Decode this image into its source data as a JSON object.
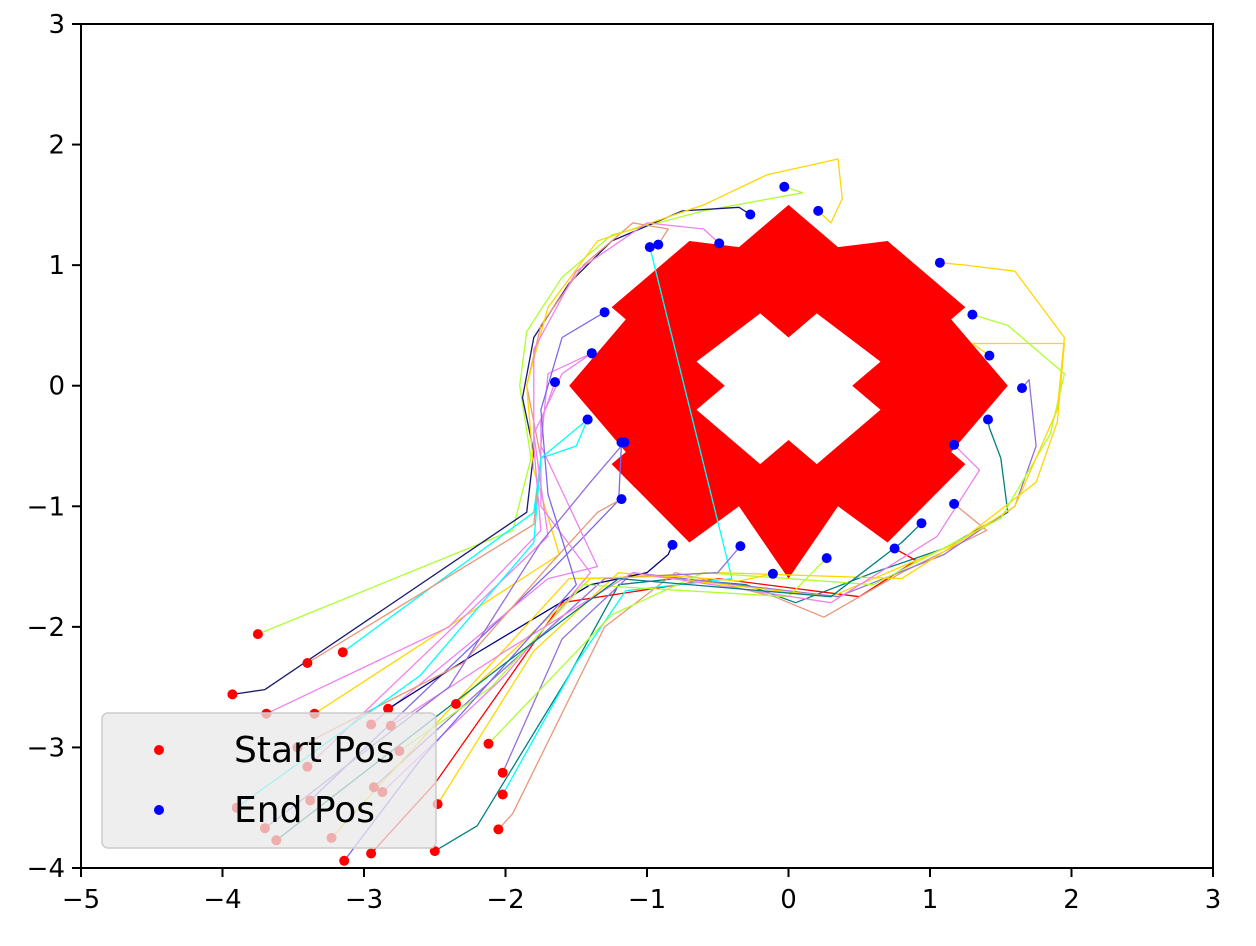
{
  "chart_data": {
    "type": "scatter",
    "xlim": [
      -5,
      3
    ],
    "ylim": [
      -4,
      3
    ],
    "xticks": [
      -5,
      -4,
      -3,
      -2,
      -1,
      0,
      1,
      2,
      3
    ],
    "yticks": [
      -4,
      -3,
      -2,
      -1,
      0,
      1,
      2,
      3
    ],
    "xtick_labels": [
      "−5",
      "−4",
      "−3",
      "−2",
      "−1",
      "0",
      "1",
      "2",
      "3"
    ],
    "ytick_labels": [
      "−4",
      "−3",
      "−2",
      "−1",
      "0",
      "1",
      "2",
      "3"
    ],
    "grid": false,
    "legend": {
      "placement": "lower-left",
      "entries": [
        {
          "label": "Start Pos",
          "color": "#ff0000"
        },
        {
          "label": "End Pos",
          "color": "#0000ff"
        }
      ]
    },
    "obstacle": {
      "color": "#ff0000",
      "outer": [
        [
          0,
          1.5
        ],
        [
          0.35,
          1.15
        ],
        [
          0.7,
          1.2
        ],
        [
          1.25,
          0.65
        ],
        [
          1.15,
          0.55
        ],
        [
          1.55,
          0.0
        ],
        [
          1.15,
          -0.55
        ],
        [
          1.25,
          -0.65
        ],
        [
          0.7,
          -1.3
        ],
        [
          0.35,
          -1.0
        ],
        [
          0,
          -1.6
        ],
        [
          -0.35,
          -1.0
        ],
        [
          -0.7,
          -1.3
        ],
        [
          -1.25,
          -0.65
        ],
        [
          -1.15,
          -0.55
        ],
        [
          -1.55,
          0.0
        ],
        [
          -1.15,
          0.55
        ],
        [
          -1.25,
          0.65
        ],
        [
          -0.7,
          1.2
        ],
        [
          -0.35,
          1.15
        ]
      ],
      "hole": [
        [
          0,
          0.4
        ],
        [
          0.2,
          0.6
        ],
        [
          0.65,
          0.2
        ],
        [
          0.45,
          0.0
        ],
        [
          0.65,
          -0.2
        ],
        [
          0.2,
          -0.65
        ],
        [
          0,
          -0.45
        ],
        [
          -0.2,
          -0.65
        ],
        [
          -0.65,
          -0.2
        ],
        [
          -0.45,
          0.0
        ],
        [
          -0.65,
          0.2
        ],
        [
          -0.2,
          0.6
        ]
      ]
    },
    "series": [
      {
        "color": "#adff2f",
        "start": [
          -3.75,
          -2.06
        ],
        "end": [
          -0.03,
          1.65
        ],
        "path": [
          [
            -1.95,
            -1.2
          ],
          [
            -1.82,
            -0.6
          ],
          [
            -1.9,
            0.0
          ],
          [
            -1.85,
            0.45
          ],
          [
            -1.6,
            0.9
          ],
          [
            -1.25,
            1.25
          ],
          [
            -0.6,
            1.45
          ],
          [
            0.1,
            1.6
          ]
        ]
      },
      {
        "color": "#00ffff",
        "start": [
          -3.15,
          -2.21
        ],
        "end": [
          -1.42,
          -0.28
        ],
        "path": [
          [
            -1.8,
            -1.05
          ],
          [
            -1.75,
            -0.6
          ],
          [
            -1.5,
            -0.5
          ]
        ]
      },
      {
        "color": "#191970",
        "start": [
          -3.93,
          -2.56
        ],
        "end": [
          -0.27,
          1.42
        ],
        "path": [
          [
            -3.7,
            -2.52
          ],
          [
            -1.85,
            -1.05
          ],
          [
            -1.8,
            -0.55
          ],
          [
            -1.88,
            -0.1
          ],
          [
            -1.8,
            0.4
          ],
          [
            -1.55,
            0.85
          ],
          [
            -1.25,
            1.2
          ],
          [
            -0.75,
            1.45
          ],
          [
            -0.35,
            1.48
          ]
        ]
      },
      {
        "color": "#e9967a",
        "start": [
          -3.4,
          -2.3
        ],
        "end": [
          -0.92,
          1.17
        ],
        "path": [
          [
            -1.8,
            -1.15
          ],
          [
            -1.75,
            -0.6
          ],
          [
            -1.85,
            0.0
          ],
          [
            -1.75,
            0.5
          ],
          [
            -1.45,
            1.0
          ],
          [
            -1.1,
            1.35
          ],
          [
            -0.85,
            1.3
          ]
        ]
      },
      {
        "color": "#ffd700",
        "start": [
          -3.35,
          -2.72
        ],
        "end": [
          0.21,
          1.45
        ],
        "path": [
          [
            -1.62,
            -1.4
          ],
          [
            -1.8,
            -0.7
          ],
          [
            -1.85,
            0.0
          ],
          [
            -1.7,
            0.65
          ],
          [
            -1.35,
            1.2
          ],
          [
            -0.6,
            1.5
          ],
          [
            -0.15,
            1.75
          ],
          [
            0.35,
            1.88
          ],
          [
            0.38,
            1.55
          ],
          [
            0.3,
            1.35
          ]
        ]
      },
      {
        "color": "#ee82ee",
        "start": [
          -3.4,
          -3.16
        ],
        "end": [
          -1.39,
          0.27
        ],
        "path": [
          [
            -1.7,
            -1.25
          ],
          [
            -1.8,
            -0.4
          ],
          [
            -1.6,
            0.1
          ]
        ]
      },
      {
        "color": "#7b68ee",
        "start": [
          -3.38,
          -3.44
        ],
        "end": [
          -1.18,
          -0.47
        ],
        "path": [
          [
            -1.65,
            -1.5
          ],
          [
            -1.2,
            -0.95
          ]
        ]
      },
      {
        "color": "#008080",
        "start": [
          -2.5,
          -3.86
        ],
        "end": [
          1.41,
          -0.28
        ],
        "path": [
          [
            -2.2,
            -3.65
          ],
          [
            -1.55,
            -2.4
          ],
          [
            -1.2,
            -1.65
          ],
          [
            -0.8,
            -1.6
          ],
          [
            -0.3,
            -1.65
          ],
          [
            0.05,
            -1.8
          ],
          [
            0.6,
            -1.55
          ],
          [
            1.1,
            -1.35
          ],
          [
            1.55,
            -1.05
          ],
          [
            1.5,
            -0.6
          ],
          [
            1.42,
            -0.35
          ]
        ]
      },
      {
        "color": "#ff0000",
        "start": [
          -2.95,
          -3.88
        ],
        "end": [
          0.75,
          -1.35
        ],
        "path": [
          [
            -2.5,
            -3.3
          ],
          [
            -1.6,
            -1.8
          ],
          [
            -0.5,
            -1.6
          ],
          [
            0.5,
            -1.75
          ],
          [
            0.9,
            -1.45
          ]
        ]
      },
      {
        "color": "#e9967a",
        "start": [
          -2.05,
          -3.68
        ],
        "end": [
          1.17,
          -0.98
        ],
        "path": [
          [
            -1.95,
            -3.55
          ],
          [
            -1.3,
            -2.0
          ],
          [
            -0.8,
            -1.55
          ],
          [
            -0.1,
            -1.75
          ],
          [
            0.25,
            -1.92
          ],
          [
            0.8,
            -1.55
          ],
          [
            1.4,
            -1.2
          ]
        ]
      },
      {
        "color": "#00ffff",
        "start": [
          -2.02,
          -3.39
        ],
        "end": [
          -0.98,
          1.15
        ],
        "path": [
          [
            -1.5,
            -2.3
          ],
          [
            -1.15,
            -1.7
          ],
          [
            -0.4,
            -1.6
          ]
        ]
      },
      {
        "color": "#9370db",
        "start": [
          -2.02,
          -3.21
        ],
        "end": [
          1.65,
          -0.02
        ],
        "path": [
          [
            -1.6,
            -2.1
          ],
          [
            -1.1,
            -1.55
          ],
          [
            0.35,
            -1.75
          ],
          [
            1.1,
            -1.4
          ],
          [
            1.6,
            -1.0
          ],
          [
            1.75,
            -0.5
          ],
          [
            1.7,
            0.05
          ]
        ]
      },
      {
        "color": "#ffd700",
        "start": [
          -2.48,
          -3.47
        ],
        "end": [
          1.42,
          0.25
        ],
        "path": [
          [
            -1.8,
            -2.2
          ],
          [
            -1.2,
            -1.55
          ],
          [
            0.3,
            -1.75
          ],
          [
            1.2,
            -1.3
          ],
          [
            1.75,
            -0.8
          ],
          [
            1.9,
            -0.3
          ],
          [
            1.95,
            0.35
          ],
          [
            1.3,
            0.35
          ]
        ]
      },
      {
        "color": "#adff2f",
        "start": [
          -2.12,
          -2.97
        ],
        "end": [
          1.3,
          0.59
        ],
        "path": [
          [
            -1.25,
            -1.9
          ],
          [
            -0.6,
            -1.55
          ],
          [
            0.6,
            -1.65
          ],
          [
            1.5,
            -1.1
          ],
          [
            1.85,
            -0.4
          ],
          [
            1.95,
            0.1
          ],
          [
            1.55,
            0.5
          ]
        ]
      },
      {
        "color": "#ffd700",
        "start": [
          -2.35,
          -2.64
        ],
        "end": [
          1.07,
          1.02
        ],
        "path": [
          [
            -1.4,
            -1.6
          ],
          [
            -0.5,
            -1.55
          ],
          [
            0.8,
            -1.6
          ],
          [
            1.6,
            -1.0
          ],
          [
            1.9,
            -0.2
          ],
          [
            1.95,
            0.4
          ],
          [
            1.6,
            0.95
          ],
          [
            1.25,
            1.0
          ]
        ]
      },
      {
        "color": "#ee82ee",
        "start": [
          -2.95,
          -2.81
        ],
        "end": [
          -1.39,
          0.27
        ],
        "path": [
          [
            -1.7,
            -1.6
          ],
          [
            -1.35,
            -1.5
          ],
          [
            -1.75,
            -0.5
          ],
          [
            -1.7,
            0.1
          ]
        ]
      },
      {
        "color": "#000080",
        "start": [
          -2.83,
          -2.68
        ],
        "end": [
          -0.82,
          -1.32
        ],
        "path": [
          [
            -2.25,
            -2.25
          ],
          [
            -1.4,
            -1.65
          ],
          [
            -1.0,
            -1.55
          ],
          [
            -0.85,
            -1.4
          ]
        ]
      },
      {
        "color": "#9370db",
        "start": [
          -2.93,
          -3.33
        ],
        "end": [
          -0.34,
          -1.33
        ],
        "path": [
          [
            -2.2,
            -2.55
          ],
          [
            -1.3,
            -1.6
          ],
          [
            -0.5,
            -1.55
          ]
        ]
      },
      {
        "color": "#ee82ee",
        "start": [
          -2.87,
          -3.37
        ],
        "end": [
          -1.65,
          0.03
        ],
        "path": [
          [
            -2.0,
            -2.4
          ],
          [
            -1.4,
            -1.55
          ],
          [
            -1.75,
            -1.0
          ],
          [
            -1.75,
            -0.3
          ]
        ]
      },
      {
        "color": "#ffd700",
        "start": [
          -3.23,
          -3.75
        ],
        "end": [
          -0.11,
          -1.56
        ],
        "path": [
          [
            -1.55,
            -1.6
          ],
          [
            -0.8,
            -1.58
          ],
          [
            -0.35,
            -1.62
          ]
        ]
      },
      {
        "color": "#adff2f",
        "start": [
          -2.75,
          -3.03
        ],
        "end": [
          0.27,
          -1.43
        ],
        "path": [
          [
            -2.1,
            -2.5
          ],
          [
            -1.45,
            -1.65
          ],
          [
            0.0,
            -1.75
          ]
        ]
      },
      {
        "color": "#e9967a",
        "start": [
          -3.47,
          -3.0
        ],
        "end": [
          -1.18,
          -0.94
        ],
        "path": [
          [
            -2.3,
            -2.3
          ],
          [
            -1.7,
            -1.5
          ],
          [
            -1.35,
            -1.05
          ]
        ]
      },
      {
        "color": "#ee82ee",
        "start": [
          -3.69,
          -2.72
        ],
        "end": [
          -0.49,
          1.18
        ],
        "path": [
          [
            -2.4,
            -2.0
          ],
          [
            -1.75,
            -1.2
          ],
          [
            -1.8,
            -0.5
          ],
          [
            -1.8,
            0.3
          ],
          [
            -1.5,
            0.95
          ],
          [
            -1.0,
            1.35
          ],
          [
            -0.6,
            1.3
          ]
        ]
      },
      {
        "color": "#ee82ee",
        "start": [
          -2.81,
          -2.82
        ],
        "end": [
          1.17,
          -0.49
        ],
        "path": [
          [
            -2.0,
            -2.2
          ],
          [
            -1.1,
            -1.55
          ],
          [
            0.3,
            -1.8
          ],
          [
            1.05,
            -1.25
          ],
          [
            1.35,
            -0.7
          ]
        ]
      },
      {
        "color": "#7b68ee",
        "start": [
          -3.14,
          -3.94
        ],
        "end": [
          -1.3,
          0.61
        ],
        "path": [
          [
            -2.6,
            -3.1
          ],
          [
            -1.5,
            -1.65
          ],
          [
            -1.7,
            -0.9
          ],
          [
            -1.75,
            -0.2
          ],
          [
            -1.6,
            0.4
          ]
        ]
      },
      {
        "color": "#008080",
        "start": [
          -3.62,
          -3.77
        ],
        "end": [
          0.94,
          -1.14
        ],
        "path": [
          [
            -2.0,
            -2.3
          ],
          [
            -1.2,
            -1.6
          ],
          [
            0.3,
            -1.75
          ],
          [
            0.8,
            -1.3
          ]
        ]
      },
      {
        "color": "#9370db",
        "start": [
          -3.7,
          -3.67
        ],
        "end": [
          -1.16,
          -0.47
        ],
        "path": [
          [
            -2.4,
            -2.5
          ],
          [
            -1.75,
            -1.3
          ],
          [
            -1.4,
            -0.8
          ]
        ]
      },
      {
        "color": "#00ffff",
        "start": [
          -3.9,
          -3.5
        ],
        "end": [
          -1.42,
          -0.28
        ],
        "path": [
          [
            -2.6,
            -2.4
          ],
          [
            -1.8,
            -1.3
          ],
          [
            -1.75,
            -0.6
          ]
        ]
      }
    ]
  }
}
